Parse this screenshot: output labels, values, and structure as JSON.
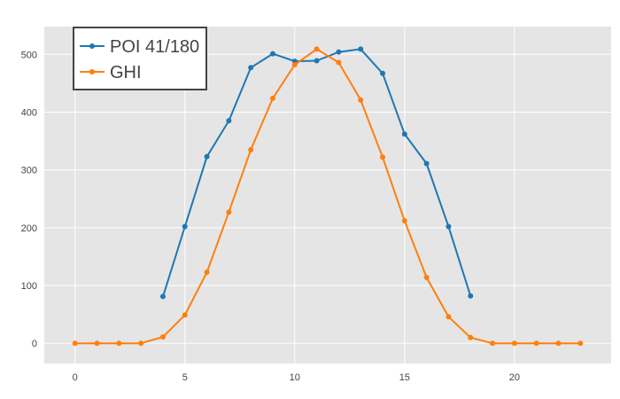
{
  "chart_data": {
    "type": "line",
    "title": "",
    "xlabel": "",
    "ylabel": "",
    "xlim": [
      -1.4,
      24.4
    ],
    "ylim": [
      -35,
      548
    ],
    "x_ticks": [
      0,
      5,
      10,
      15,
      20
    ],
    "y_ticks": [
      0,
      100,
      200,
      300,
      400,
      500
    ],
    "grid": true,
    "legend_position": "top-left",
    "series": [
      {
        "name": "POI 41/180",
        "color": "#1f77b4",
        "x": [
          4,
          5,
          6,
          7,
          8,
          9,
          10,
          11,
          12,
          13,
          14,
          15,
          16,
          17,
          18
        ],
        "y": [
          81,
          202,
          323,
          385,
          477,
          501,
          488,
          489,
          504,
          509,
          467,
          362,
          311,
          202,
          82
        ]
      },
      {
        "name": "GHI",
        "color": "#ff7f0e",
        "x": [
          0,
          1,
          2,
          3,
          4,
          5,
          6,
          7,
          8,
          9,
          10,
          11,
          12,
          13,
          14,
          15,
          16,
          17,
          18,
          19,
          20,
          21,
          22,
          23
        ],
        "y": [
          0,
          0,
          0,
          0,
          11,
          49,
          123,
          227,
          335,
          424,
          482,
          509,
          486,
          421,
          322,
          212,
          114,
          46,
          10,
          0,
          0,
          0,
          0,
          0
        ]
      }
    ]
  }
}
